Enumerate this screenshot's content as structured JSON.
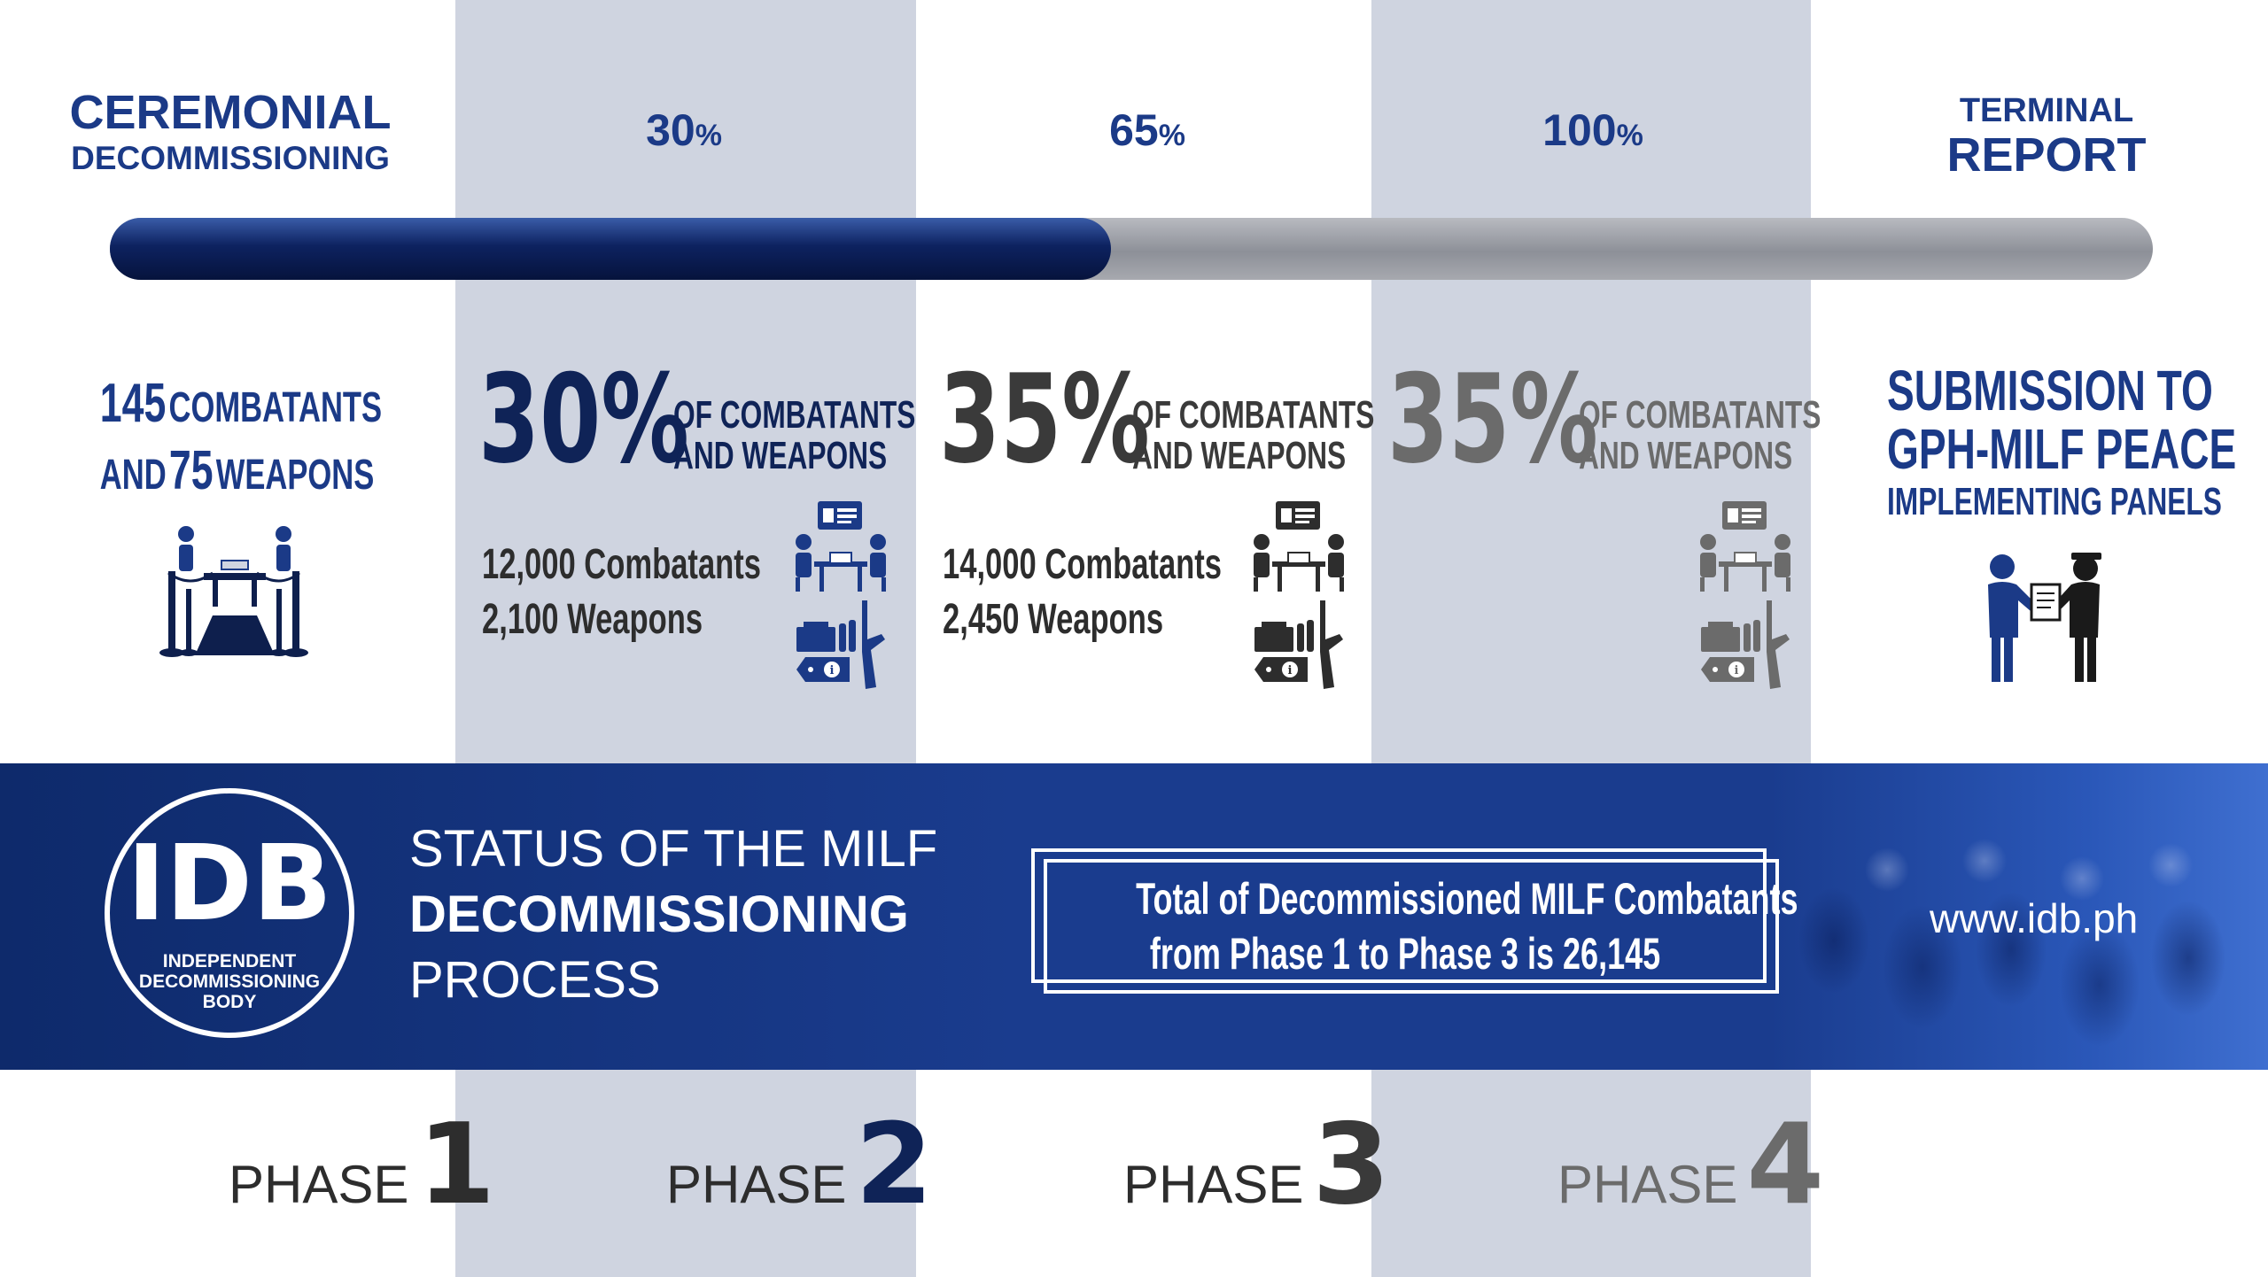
{
  "header": {
    "ceremonial_line1": "CEREMONIAL",
    "ceremonial_line2": "DECOMMISSIONING",
    "pct_30_num": "30",
    "pct_65_num": "65",
    "pct_100_num": "100",
    "pct_sign": "%",
    "terminal_line1": "TERMINAL",
    "terminal_line2": "REPORT"
  },
  "progress": {
    "fraction": 0.49
  },
  "phase1": {
    "combatants_num": "145",
    "combatants_label": "COMBATANTS",
    "and_label": "AND",
    "weapons_num": "75",
    "weapons_label": "WEAPONS"
  },
  "phase2": {
    "big_pct": "30%",
    "of_line1": "OF COMBATANTS",
    "of_line2": "AND WEAPONS",
    "combatants": "12,000 Combatants",
    "weapons": "2,100 Weapons"
  },
  "phase3": {
    "big_pct": "35%",
    "of_line1": "OF COMBATANTS",
    "of_line2": "AND WEAPONS",
    "combatants": "14,000 Combatants",
    "weapons": "2,450 Weapons"
  },
  "phase4": {
    "big_pct": "35%",
    "of_line1": "OF COMBATANTS",
    "of_line2": "AND WEAPONS"
  },
  "terminal": {
    "line1": "SUBMISSION TO",
    "line2": "GPH-MILF PEACE",
    "line3": "IMPLEMENTING PANELS"
  },
  "banner": {
    "logo_text": "IDB",
    "logo_sub1": "INDEPENDENT",
    "logo_sub2": "DECOMMISSIONING",
    "logo_sub3": "BODY",
    "status_line1": "STATUS OF THE MILF",
    "status_line2": "DECOMMISSIONING",
    "status_line3": "PROCESS",
    "total_line1": "Total of Decommissioned MILF Combatants",
    "total_line2": "from Phase 1 to Phase 3 is 26,145",
    "website": "www.idb.ph"
  },
  "phases": [
    {
      "word": "PHASE",
      "num": "1"
    },
    {
      "word": "PHASE",
      "num": "2"
    },
    {
      "word": "PHASE",
      "num": "3"
    },
    {
      "word": "PHASE",
      "num": "4"
    }
  ],
  "colors": {
    "navy": "#1b3a87",
    "dark": "#2d2d2d",
    "gray": "#6b6b6b",
    "column_shade": "#cfd4e0",
    "banner": "#1a3c8e"
  },
  "icons": {
    "ceremony": "ceremony-table-icon",
    "meeting": "meeting-icon",
    "weapons": "weapons-icon",
    "handover": "handover-icon"
  }
}
